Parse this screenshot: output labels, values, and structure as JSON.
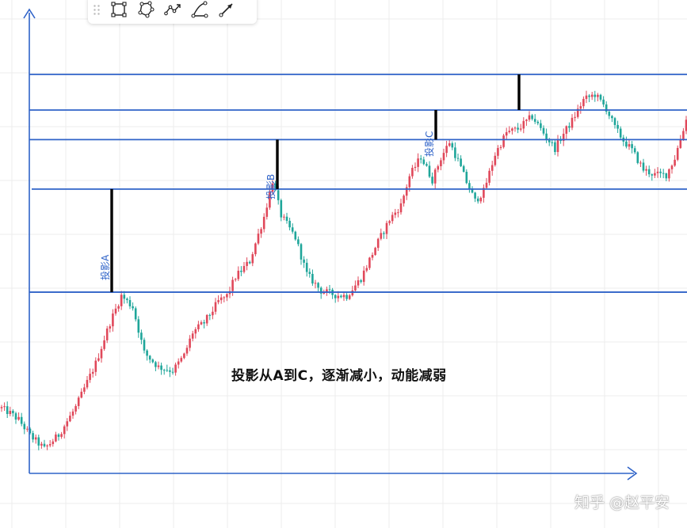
{
  "toolbar": {
    "tools": [
      {
        "name": "rectangle-tool",
        "icon": "rectangle-icon"
      },
      {
        "name": "polygon-tool",
        "icon": "polygon-icon"
      },
      {
        "name": "path-tool",
        "icon": "path-icon"
      },
      {
        "name": "arc-tool",
        "icon": "arc-icon"
      },
      {
        "name": "arrow-tool",
        "icon": "arrow-icon"
      }
    ]
  },
  "annotation": "投影从A到C，逐渐减小，动能减弱",
  "projections": [
    {
      "label": "投影A"
    },
    {
      "label": "投影B"
    },
    {
      "label": "投影C"
    },
    {
      "label": ""
    }
  ],
  "watermark": "知乎 @赵平安",
  "colors": {
    "up": "#e0485a",
    "down": "#1fa69a",
    "line": "#2f63c8",
    "grid": "#ececec",
    "projection": "#000000"
  },
  "chart_data": {
    "type": "candlestick",
    "title": "",
    "xlabel": "",
    "ylabel": "",
    "grid": true,
    "ylim": [
      0,
      100
    ],
    "levels": [
      39.2,
      61.5,
      72.2,
      78.6,
      86.3
    ],
    "projection_segments": [
      {
        "label": "投影A",
        "low": 39.2,
        "high": 61.5
      },
      {
        "label": "投影B",
        "low": 61.5,
        "high": 72.2
      },
      {
        "label": "投影C",
        "low": 72.2,
        "high": 78.6
      },
      {
        "label": "",
        "low": 78.6,
        "high": 86.3
      }
    ],
    "price_path": [
      [
        0,
        14.1
      ],
      [
        3,
        13.0
      ],
      [
        6,
        11.6
      ],
      [
        10,
        8.2
      ],
      [
        15,
        5.3
      ],
      [
        20,
        8.3
      ],
      [
        26,
        14.3
      ],
      [
        33,
        23.8
      ],
      [
        38,
        32.6
      ],
      [
        42,
        38.4
      ],
      [
        46,
        36.0
      ],
      [
        50,
        26.1
      ],
      [
        55,
        23.0
      ],
      [
        60,
        22.2
      ],
      [
        64,
        25.5
      ],
      [
        67,
        30.5
      ],
      [
        71,
        32.6
      ],
      [
        74,
        35.3
      ],
      [
        76,
        37.2
      ],
      [
        79,
        38.4
      ],
      [
        82,
        42.5
      ],
      [
        87,
        45.9
      ],
      [
        92,
        55.5
      ],
      [
        95,
        63.3
      ],
      [
        98,
        55.8
      ],
      [
        103,
        51.0
      ],
      [
        107,
        43.1
      ],
      [
        112,
        39.5
      ],
      [
        117,
        38.6
      ],
      [
        121,
        38.4
      ],
      [
        126,
        42.2
      ],
      [
        131,
        48.9
      ],
      [
        136,
        54.9
      ],
      [
        140,
        58.0
      ],
      [
        143,
        64.3
      ],
      [
        147,
        68.5
      ],
      [
        151,
        63.5
      ],
      [
        154,
        68.2
      ],
      [
        157,
        71.7
      ],
      [
        160,
        67.6
      ],
      [
        163,
        63.0
      ],
      [
        166,
        58.9
      ],
      [
        169,
        61.0
      ],
      [
        173,
        69.0
      ],
      [
        177,
        73.7
      ],
      [
        181,
        74.5
      ],
      [
        186,
        77.2
      ],
      [
        191,
        72.7
      ],
      [
        194,
        70.3
      ],
      [
        197,
        73.5
      ],
      [
        200,
        76.3
      ],
      [
        204,
        80.8
      ],
      [
        208,
        82.0
      ],
      [
        212,
        78.9
      ],
      [
        215,
        74.8
      ],
      [
        218,
        72.0
      ],
      [
        221,
        69.9
      ],
      [
        225,
        65.7
      ],
      [
        229,
        64.6
      ],
      [
        233,
        64.6
      ],
      [
        236,
        68.2
      ],
      [
        238,
        72.5
      ],
      [
        240,
        76.5
      ]
    ]
  }
}
